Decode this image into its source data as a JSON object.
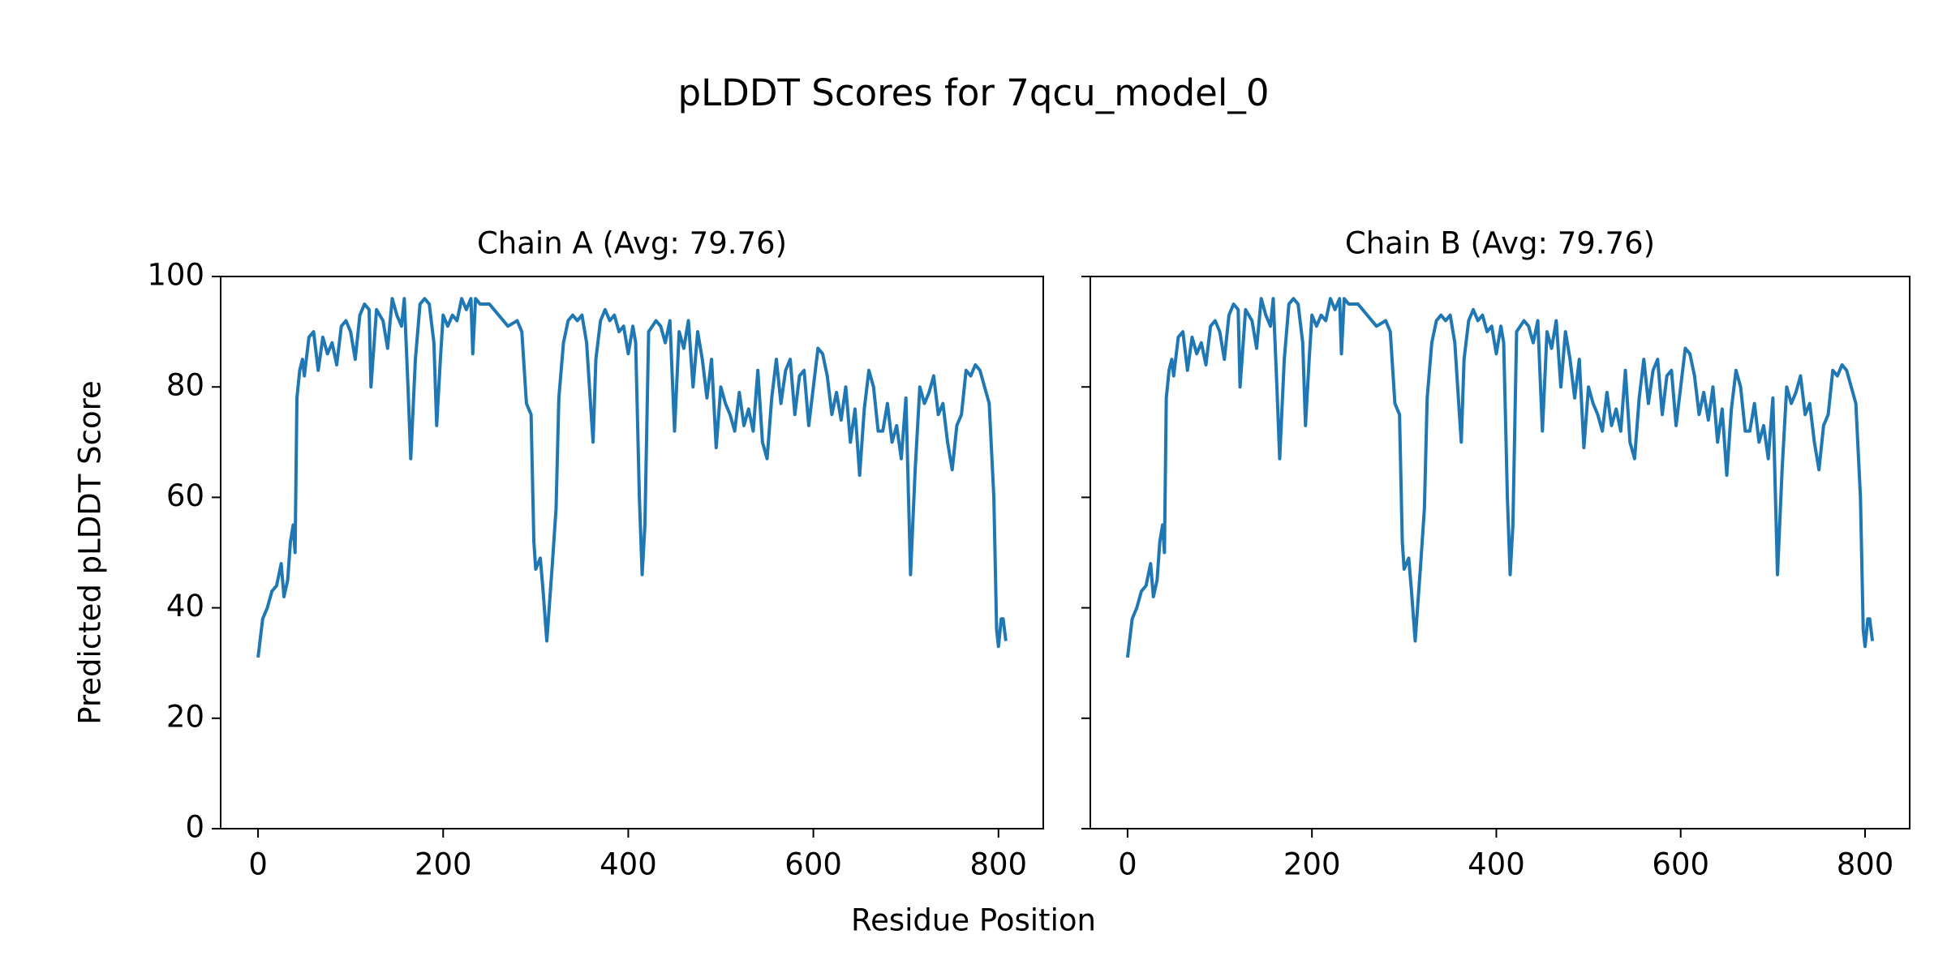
{
  "title": "pLDDT Scores for 7qcu_model_0",
  "xlabel": "Residue Position",
  "chart_data": [
    {
      "type": "line",
      "title": "Chain A (Avg: 79.76)",
      "ylabel": "Predicted pLDDT Score",
      "xlim": [
        -40.4,
        848.4
      ],
      "xticks": [
        0,
        200,
        400,
        600,
        800
      ],
      "ylim": [
        0,
        100
      ],
      "yticks": [
        0,
        20,
        40,
        60,
        80,
        100
      ],
      "show_ytick_labels": true,
      "series": [
        {
          "color": "#1f77b4",
          "x": [
            0,
            5,
            10,
            15,
            20,
            25,
            28,
            32,
            35,
            38,
            40,
            42,
            45,
            48,
            50,
            55,
            60,
            65,
            70,
            75,
            80,
            85,
            90,
            95,
            100,
            105,
            110,
            115,
            120,
            122,
            128,
            135,
            140,
            145,
            150,
            155,
            158,
            162,
            165,
            170,
            175,
            180,
            185,
            190,
            193,
            197,
            200,
            205,
            210,
            215,
            220,
            225,
            230,
            232,
            235,
            240,
            250,
            260,
            270,
            280,
            285,
            290,
            295,
            298,
            300,
            305,
            308,
            312,
            318,
            322,
            325,
            330,
            335,
            340,
            345,
            350,
            355,
            360,
            362,
            365,
            370,
            375,
            380,
            385,
            390,
            395,
            400,
            405,
            408,
            412,
            415,
            418,
            422,
            430,
            435,
            440,
            445,
            450,
            455,
            460,
            465,
            470,
            475,
            480,
            485,
            490,
            495,
            500,
            505,
            510,
            515,
            520,
            525,
            530,
            535,
            540,
            545,
            550,
            555,
            560,
            565,
            570,
            575,
            580,
            585,
            590,
            595,
            600,
            605,
            610,
            615,
            620,
            625,
            630,
            635,
            640,
            645,
            650,
            655,
            660,
            665,
            670,
            675,
            680,
            685,
            690,
            695,
            700,
            705,
            710,
            715,
            720,
            725,
            730,
            735,
            740,
            745,
            750,
            755,
            760,
            765,
            770,
            775,
            780,
            785,
            790,
            795,
            798,
            800,
            803,
            805,
            808
          ],
          "values": [
            31,
            38,
            40,
            43,
            44,
            48,
            42,
            45,
            52,
            55,
            50,
            78,
            83,
            85,
            82,
            89,
            90,
            83,
            89,
            86,
            88,
            84,
            91,
            92,
            90,
            85,
            93,
            95,
            94,
            80,
            94,
            92,
            87,
            96,
            93,
            91,
            96,
            80,
            67,
            85,
            95,
            96,
            95,
            88,
            73,
            85,
            93,
            91,
            93,
            92,
            96,
            94,
            96,
            86,
            96,
            95,
            95,
            93,
            91,
            92,
            90,
            77,
            75,
            52,
            47,
            49,
            43,
            34,
            48,
            58,
            78,
            88,
            92,
            93,
            92,
            93,
            88,
            75,
            70,
            85,
            92,
            94,
            92,
            93,
            90,
            91,
            86,
            91,
            88,
            60,
            46,
            55,
            90,
            92,
            91,
            88,
            92,
            72,
            90,
            87,
            92,
            80,
            90,
            85,
            78,
            85,
            69,
            80,
            77,
            75,
            72,
            79,
            73,
            76,
            72,
            83,
            70,
            67,
            78,
            85,
            77,
            83,
            85,
            75,
            82,
            83,
            73,
            80,
            87,
            86,
            82,
            75,
            79,
            74,
            80,
            70,
            76,
            64,
            76,
            83,
            80,
            72,
            72,
            77,
            70,
            73,
            67,
            78,
            46,
            65,
            80,
            77,
            79,
            82,
            75,
            77,
            70,
            65,
            73,
            75,
            83,
            82,
            84,
            83,
            80,
            77,
            60,
            36,
            33,
            38,
            38,
            34
          ]
        }
      ]
    },
    {
      "type": "line",
      "title": "Chain B (Avg: 79.76)",
      "xlim": [
        -40.4,
        848.4
      ],
      "xticks": [
        0,
        200,
        400,
        600,
        800
      ],
      "ylim": [
        0,
        100
      ],
      "yticks": [
        0,
        20,
        40,
        60,
        80,
        100
      ],
      "show_ytick_labels": false,
      "series": [
        {
          "color": "#1f77b4",
          "x": [
            0,
            5,
            10,
            15,
            20,
            25,
            28,
            32,
            35,
            38,
            40,
            42,
            45,
            48,
            50,
            55,
            60,
            65,
            70,
            75,
            80,
            85,
            90,
            95,
            100,
            105,
            110,
            115,
            120,
            122,
            128,
            135,
            140,
            145,
            150,
            155,
            158,
            162,
            165,
            170,
            175,
            180,
            185,
            190,
            193,
            197,
            200,
            205,
            210,
            215,
            220,
            225,
            230,
            232,
            235,
            240,
            250,
            260,
            270,
            280,
            285,
            290,
            295,
            298,
            300,
            305,
            308,
            312,
            318,
            322,
            325,
            330,
            335,
            340,
            345,
            350,
            355,
            360,
            362,
            365,
            370,
            375,
            380,
            385,
            390,
            395,
            400,
            405,
            408,
            412,
            415,
            418,
            422,
            430,
            435,
            440,
            445,
            450,
            455,
            460,
            465,
            470,
            475,
            480,
            485,
            490,
            495,
            500,
            505,
            510,
            515,
            520,
            525,
            530,
            535,
            540,
            545,
            550,
            555,
            560,
            565,
            570,
            575,
            580,
            585,
            590,
            595,
            600,
            605,
            610,
            615,
            620,
            625,
            630,
            635,
            640,
            645,
            650,
            655,
            660,
            665,
            670,
            675,
            680,
            685,
            690,
            695,
            700,
            705,
            710,
            715,
            720,
            725,
            730,
            735,
            740,
            745,
            750,
            755,
            760,
            765,
            770,
            775,
            780,
            785,
            790,
            795,
            798,
            800,
            803,
            805,
            808
          ],
          "values": [
            31,
            38,
            40,
            43,
            44,
            48,
            42,
            45,
            52,
            55,
            50,
            78,
            83,
            85,
            82,
            89,
            90,
            83,
            89,
            86,
            88,
            84,
            91,
            92,
            90,
            85,
            93,
            95,
            94,
            80,
            94,
            92,
            87,
            96,
            93,
            91,
            96,
            80,
            67,
            85,
            95,
            96,
            95,
            88,
            73,
            85,
            93,
            91,
            93,
            92,
            96,
            94,
            96,
            86,
            96,
            95,
            95,
            93,
            91,
            92,
            90,
            77,
            75,
            52,
            47,
            49,
            43,
            34,
            48,
            58,
            78,
            88,
            92,
            93,
            92,
            93,
            88,
            75,
            70,
            85,
            92,
            94,
            92,
            93,
            90,
            91,
            86,
            91,
            88,
            60,
            46,
            55,
            90,
            92,
            91,
            88,
            92,
            72,
            90,
            87,
            92,
            80,
            90,
            85,
            78,
            85,
            69,
            80,
            77,
            75,
            72,
            79,
            73,
            76,
            72,
            83,
            70,
            67,
            78,
            85,
            77,
            83,
            85,
            75,
            82,
            83,
            73,
            80,
            87,
            86,
            82,
            75,
            79,
            74,
            80,
            70,
            76,
            64,
            76,
            83,
            80,
            72,
            72,
            77,
            70,
            73,
            67,
            78,
            46,
            65,
            80,
            77,
            79,
            82,
            75,
            77,
            70,
            65,
            73,
            75,
            83,
            82,
            84,
            83,
            80,
            77,
            60,
            36,
            33,
            38,
            38,
            34
          ]
        }
      ]
    }
  ]
}
